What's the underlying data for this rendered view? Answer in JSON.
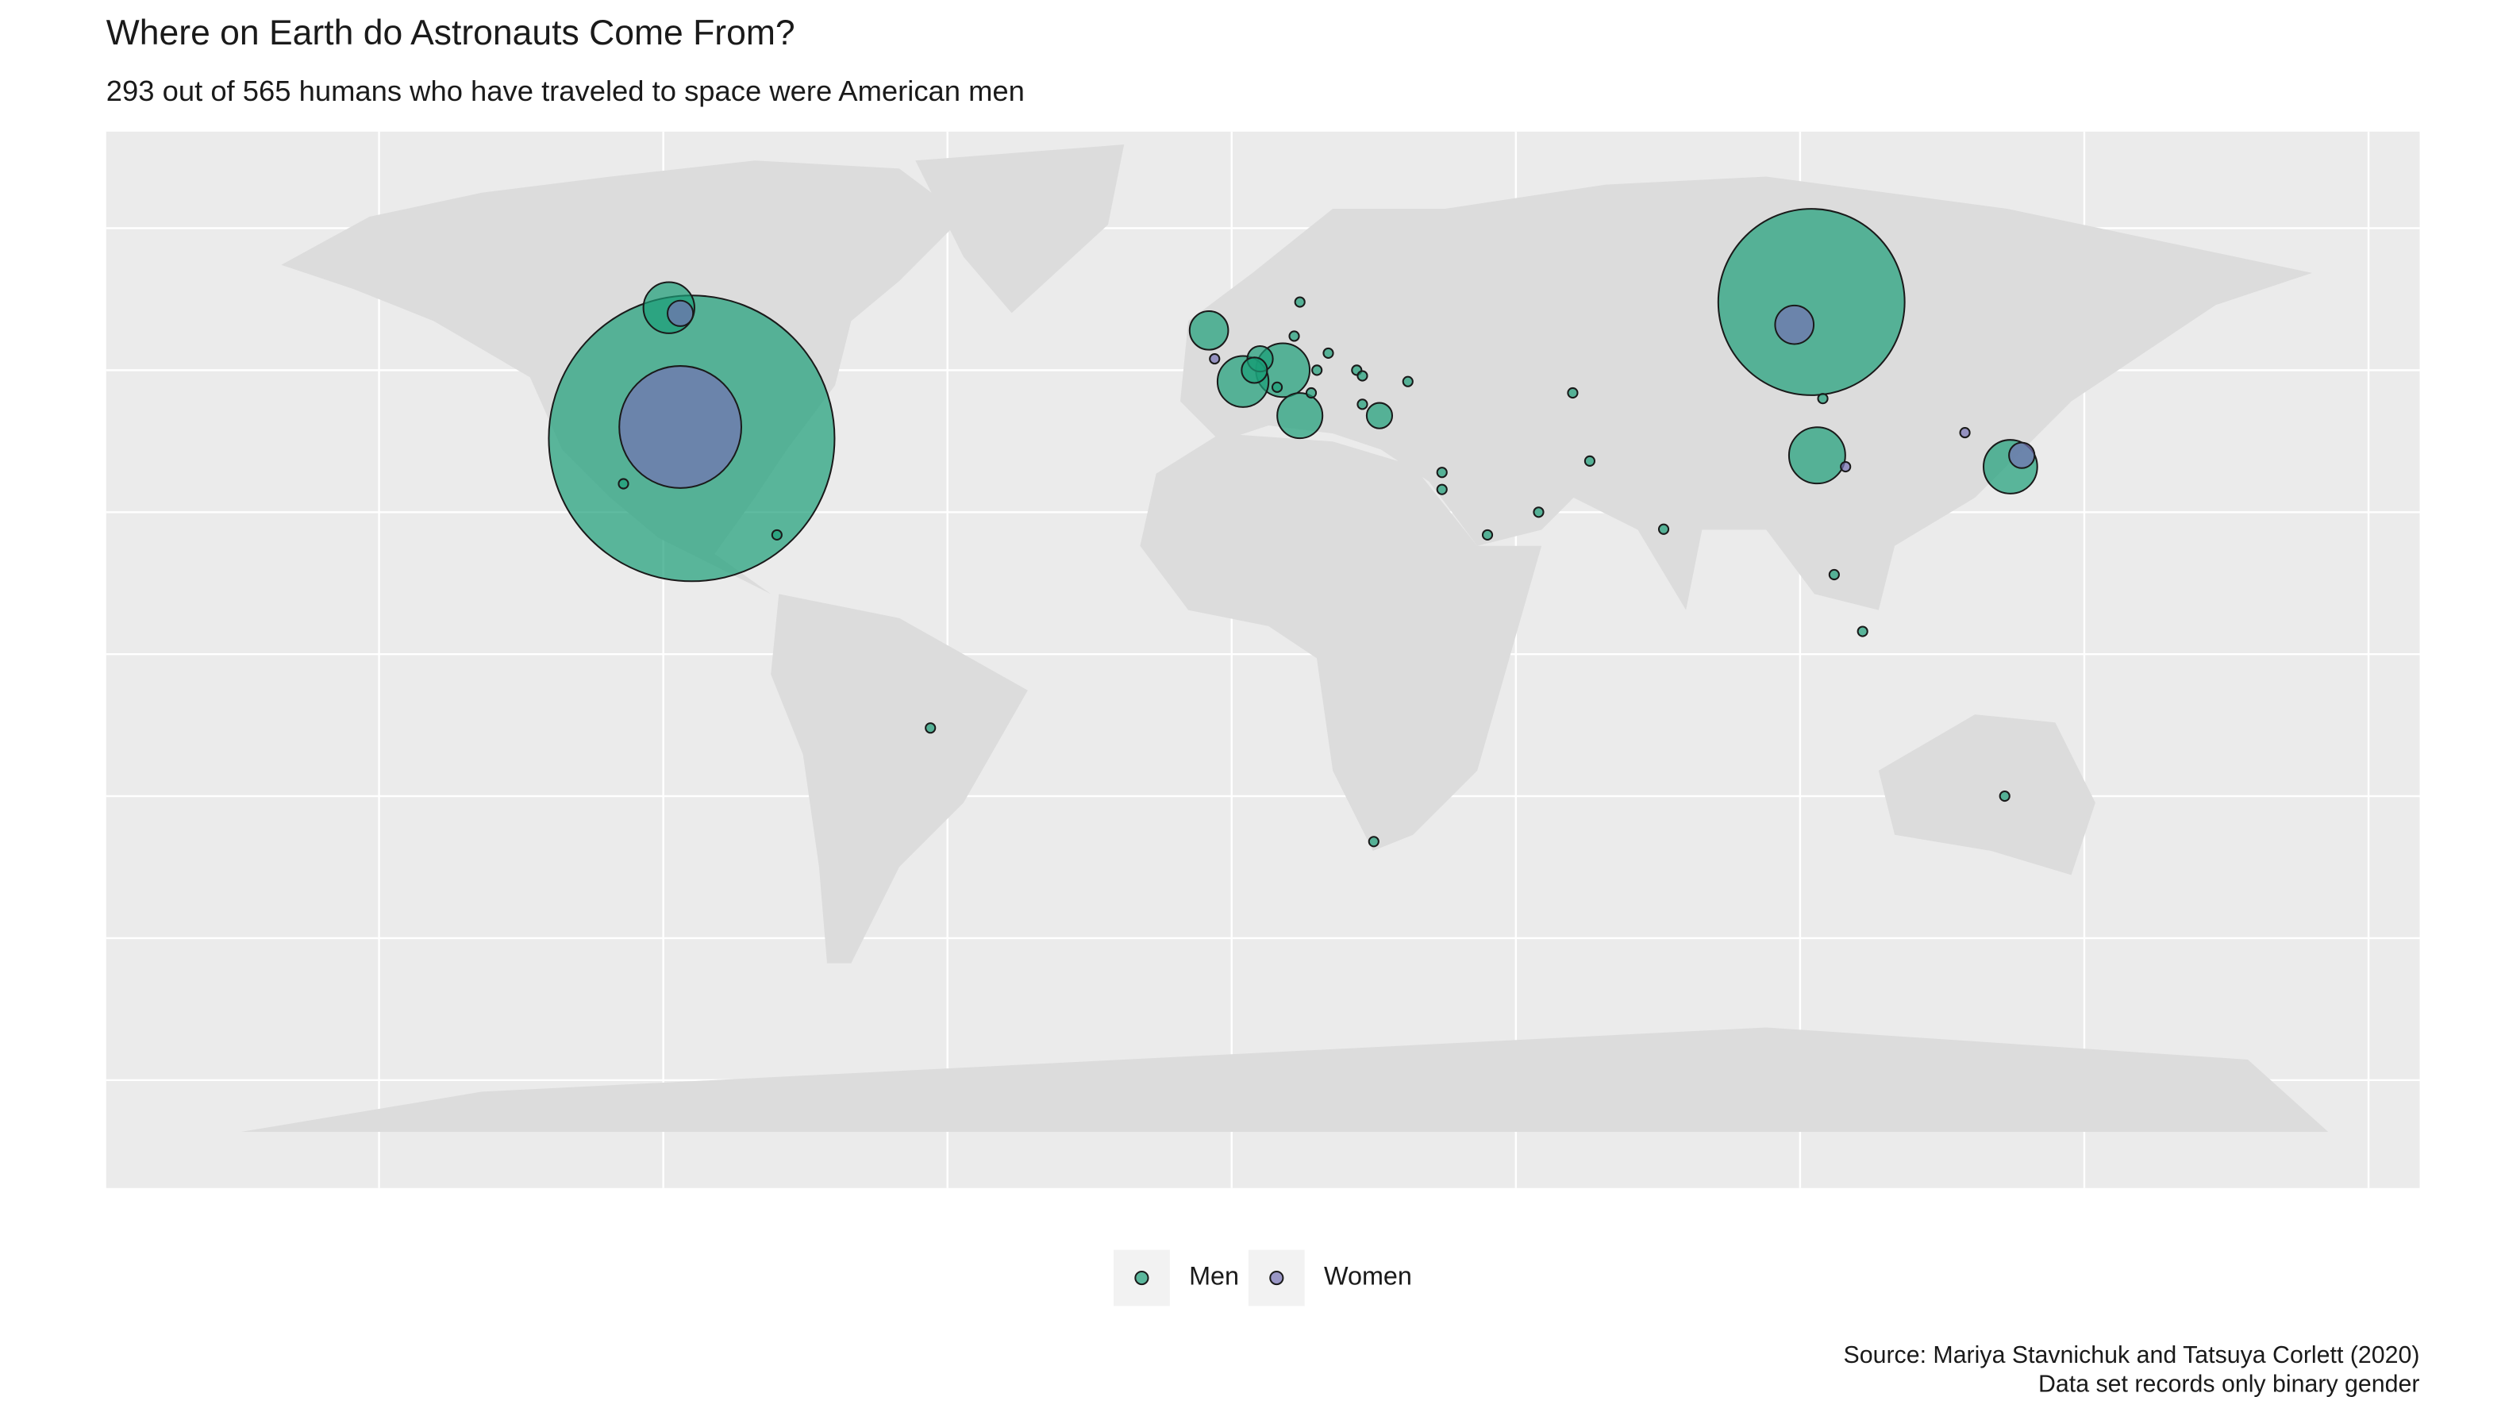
{
  "chart_data": {
    "type": "bubble",
    "title": "Where on Earth do Astronauts Come From?",
    "subtitle": "293 out of 565 humans who have traveled to space were American men",
    "caption": [
      "Source: Mariya Stavnichuk and Tatsuya Corlett (2020)",
      "Data set records only binary gender"
    ],
    "xlim": [
      -198,
      209
    ],
    "ylim": [
      -94,
      92
    ],
    "xticks": [
      -150,
      -100,
      -50,
      0,
      50,
      100,
      150,
      200
    ],
    "yticks": [
      -75,
      -50,
      -25,
      0,
      25,
      50,
      75
    ],
    "grid": true,
    "legend": "bottom",
    "series": [
      {
        "name": "Men",
        "color": "#1b9e77",
        "x": [
          -95,
          -99,
          -107,
          -80,
          -53,
          102,
          103,
          137,
          9,
          2,
          -4,
          12,
          5,
          4,
          26,
          12,
          11,
          17,
          15,
          8,
          14,
          22,
          23,
          23,
          31,
          60,
          63,
          37,
          37,
          45,
          54,
          76,
          104,
          106,
          111,
          25,
          136
        ],
        "values": [
          38,
          61,
          30,
          21,
          -13,
          62,
          35,
          33,
          50,
          48,
          57,
          42,
          52,
          50,
          42,
          62,
          56,
          53,
          50,
          47,
          46,
          50,
          49,
          44,
          48,
          46,
          34,
          32,
          29,
          21,
          25,
          22,
          45,
          14,
          4,
          -33,
          -25
        ],
        "sizes": [
          293,
          10,
          1,
          1,
          1,
          125,
          12,
          11,
          11,
          10,
          6,
          8,
          3,
          3,
          3,
          1,
          1,
          1,
          1,
          1,
          1,
          1,
          1,
          1,
          1,
          1,
          1,
          1,
          1,
          1,
          1,
          1,
          1,
          1,
          1,
          1,
          1
        ]
      },
      {
        "name": "Women",
        "color": "#7570b3",
        "x": [
          -97,
          -97,
          99,
          139,
          108,
          129,
          -3
        ],
        "values": [
          40,
          60,
          58,
          35,
          33,
          39,
          52
        ],
        "sizes": [
          54,
          3,
          6,
          3,
          1,
          1,
          1
        ]
      }
    ]
  }
}
